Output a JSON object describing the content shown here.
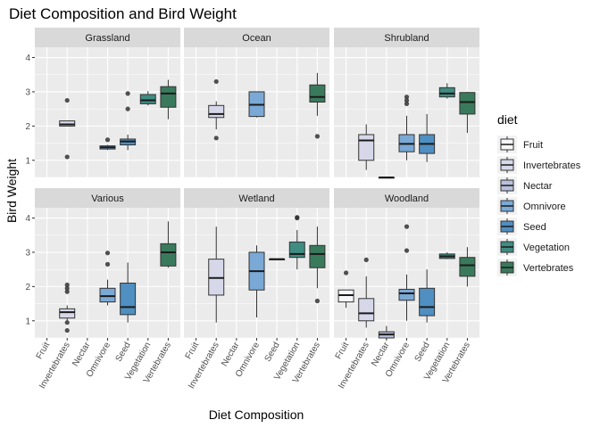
{
  "chart_data": {
    "type": "boxplot",
    "title": "Diet Composition and Bird Weight",
    "xlabel": "Diet Composition",
    "ylabel": "Bird Weight",
    "ylim": [
      0.5,
      4.3
    ],
    "yticks": [
      1,
      2,
      3,
      4
    ],
    "categories": [
      "Fruit",
      "Invertebrates",
      "Nectar",
      "Omnivore",
      "Seed",
      "Vegetation",
      "Vertebrates"
    ],
    "legend": {
      "title": "diet",
      "position": "right",
      "entries": [
        "Fruit",
        "Invertebrates",
        "Nectar",
        "Omnivore",
        "Seed",
        "Vegetation",
        "Vertebrates"
      ]
    },
    "colors": {
      "Fruit": "#f7f7fb",
      "Invertebrates": "#d6d8ea",
      "Nectar": "#b9c0dc",
      "Omnivore": "#7aa9d6",
      "Seed": "#4f8fc1",
      "Vegetation": "#3f8c82",
      "Vertebrates": "#3a7a5c"
    },
    "panel_background": "#ebebeb",
    "strip_background": "#d9d9d9",
    "grid": true,
    "facets": [
      {
        "name": "Grassland",
        "boxes": [
          {
            "category": "Invertebrates",
            "min": 2.0,
            "q1": 2.0,
            "median": 2.05,
            "q3": 2.15,
            "max": 2.15,
            "outliers": [
              2.75,
              1.1
            ]
          },
          {
            "category": "Omnivore",
            "min": 1.3,
            "q1": 1.33,
            "median": 1.38,
            "q3": 1.42,
            "max": 1.45,
            "outliers": [
              1.6
            ]
          },
          {
            "category": "Seed",
            "min": 1.3,
            "q1": 1.45,
            "median": 1.55,
            "q3": 1.62,
            "max": 1.75,
            "outliers": [
              2.95,
              2.5
            ]
          },
          {
            "category": "Vegetation",
            "min": 2.6,
            "q1": 2.65,
            "median": 2.75,
            "q3": 2.92,
            "max": 3.02,
            "outliers": []
          },
          {
            "category": "Vertebrates",
            "min": 2.2,
            "q1": 2.55,
            "median": 2.95,
            "q3": 3.15,
            "max": 3.35,
            "outliers": []
          }
        ]
      },
      {
        "name": "Ocean",
        "boxes": [
          {
            "category": "Invertebrates",
            "min": 1.9,
            "q1": 2.25,
            "median": 2.35,
            "q3": 2.6,
            "max": 2.72,
            "outliers": [
              3.3,
              1.65
            ]
          },
          {
            "category": "Omnivore",
            "min": 2.25,
            "q1": 2.28,
            "median": 2.62,
            "q3": 3.0,
            "max": 3.0,
            "outliers": []
          },
          {
            "category": "Vertebrates",
            "min": 2.3,
            "q1": 2.7,
            "median": 2.85,
            "q3": 3.2,
            "max": 3.55,
            "outliers": [
              1.7
            ]
          }
        ]
      },
      {
        "name": "Shrubland",
        "boxes": [
          {
            "category": "Invertebrates",
            "min": 0.72,
            "q1": 1.0,
            "median": 1.58,
            "q3": 1.75,
            "max": 2.05,
            "outliers": []
          },
          {
            "category": "Nectar",
            "min": 0.5,
            "q1": 0.5,
            "median": 0.5,
            "q3": 0.5,
            "max": 0.5,
            "outliers": []
          },
          {
            "category": "Omnivore",
            "min": 1.0,
            "q1": 1.25,
            "median": 1.48,
            "q3": 1.75,
            "max": 2.3,
            "outliers": [
              2.85,
              2.75,
              2.65
            ]
          },
          {
            "category": "Seed",
            "min": 0.95,
            "q1": 1.2,
            "median": 1.48,
            "q3": 1.75,
            "max": 2.35,
            "outliers": []
          },
          {
            "category": "Vegetation",
            "min": 2.8,
            "q1": 2.85,
            "median": 2.95,
            "q3": 3.12,
            "max": 3.25,
            "outliers": []
          },
          {
            "category": "Vertebrates",
            "min": 1.8,
            "q1": 2.35,
            "median": 2.7,
            "q3": 2.98,
            "max": 3.0,
            "outliers": []
          }
        ]
      },
      {
        "name": "Various",
        "boxes": [
          {
            "category": "Invertebrates",
            "min": 1.0,
            "q1": 1.08,
            "median": 1.25,
            "q3": 1.35,
            "max": 1.45,
            "outliers": [
              2.05,
              1.95,
              1.85,
              0.95,
              0.72
            ]
          },
          {
            "category": "Omnivore",
            "min": 1.45,
            "q1": 1.55,
            "median": 1.72,
            "q3": 1.95,
            "max": 2.2,
            "outliers": [
              2.98,
              2.65
            ]
          },
          {
            "category": "Seed",
            "min": 0.95,
            "q1": 1.18,
            "median": 1.4,
            "q3": 2.1,
            "max": 2.7,
            "outliers": []
          },
          {
            "category": "Vertebrates",
            "min": 2.55,
            "q1": 2.6,
            "median": 3.0,
            "q3": 3.25,
            "max": 3.9,
            "outliers": []
          }
        ]
      },
      {
        "name": "Wetland",
        "boxes": [
          {
            "category": "Invertebrates",
            "min": 0.95,
            "q1": 1.75,
            "median": 2.25,
            "q3": 2.8,
            "max": 3.75,
            "outliers": []
          },
          {
            "category": "Omnivore",
            "min": 1.1,
            "q1": 1.9,
            "median": 2.45,
            "q3": 3.0,
            "max": 3.2,
            "outliers": []
          },
          {
            "category": "Seed",
            "min": 2.8,
            "q1": 2.8,
            "median": 2.8,
            "q3": 2.8,
            "max": 2.8,
            "outliers": []
          },
          {
            "category": "Vegetation",
            "min": 2.5,
            "q1": 2.85,
            "median": 2.95,
            "q3": 3.3,
            "max": 3.65,
            "outliers": [
              4.02,
              4.0
            ]
          },
          {
            "category": "Vertebrates",
            "min": 1.95,
            "q1": 2.55,
            "median": 2.95,
            "q3": 3.2,
            "max": 3.75,
            "outliers": [
              1.58
            ]
          }
        ]
      },
      {
        "name": "Woodland",
        "boxes": [
          {
            "category": "Fruit",
            "min": 1.38,
            "q1": 1.55,
            "median": 1.75,
            "q3": 1.9,
            "max": 1.9,
            "outliers": [
              2.4
            ]
          },
          {
            "category": "Invertebrates",
            "min": 0.8,
            "q1": 1.0,
            "median": 1.22,
            "q3": 1.65,
            "max": 2.3,
            "outliers": [
              2.78
            ]
          },
          {
            "category": "Nectar",
            "min": 0.45,
            "q1": 0.5,
            "median": 0.6,
            "q3": 0.68,
            "max": 0.85,
            "outliers": []
          },
          {
            "category": "Omnivore",
            "min": 1.0,
            "q1": 1.6,
            "median": 1.8,
            "q3": 1.92,
            "max": 2.35,
            "outliers": [
              3.75,
              3.05
            ]
          },
          {
            "category": "Seed",
            "min": 0.95,
            "q1": 1.15,
            "median": 1.4,
            "q3": 1.95,
            "max": 2.5,
            "outliers": []
          },
          {
            "category": "Vegetation",
            "min": 2.8,
            "q1": 2.82,
            "median": 2.88,
            "q3": 2.95,
            "max": 3.0,
            "outliers": []
          },
          {
            "category": "Vertebrates",
            "min": 2.0,
            "q1": 2.3,
            "median": 2.62,
            "q3": 2.85,
            "max": 3.15,
            "outliers": []
          }
        ]
      }
    ]
  }
}
